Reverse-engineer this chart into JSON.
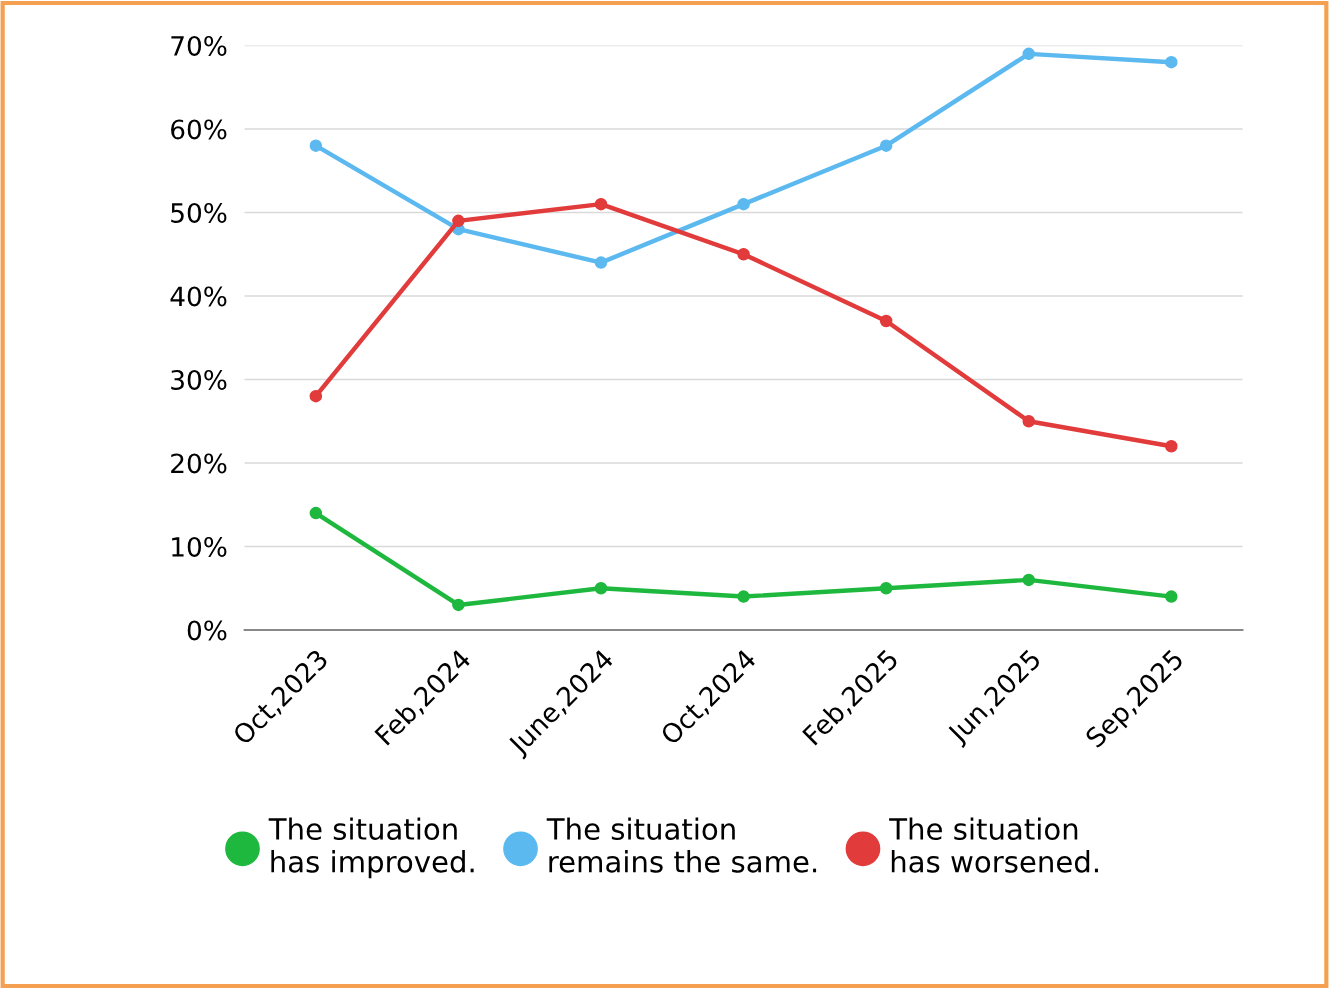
{
  "chart_data": {
    "type": "line",
    "categories": [
      "Oct,2023",
      "Feb,2024",
      "June,2024",
      "Oct,2024",
      "Feb,2025",
      "Jun,2025",
      "Sep,2025"
    ],
    "series": [
      {
        "name": "The situation\nhas improved.",
        "color": "#1fb83f",
        "values": [
          14,
          3,
          5,
          4,
          5,
          6,
          4
        ]
      },
      {
        "name": "The situation\nremains the same.",
        "color": "#5bb9f0",
        "values": [
          58,
          48,
          44,
          51,
          58,
          69,
          68
        ]
      },
      {
        "name": "The situation\nhas worsened.",
        "color": "#e23b3b",
        "values": [
          28,
          49,
          51,
          45,
          37,
          25,
          22
        ]
      }
    ],
    "ylim": [
      0,
      70
    ],
    "yticks": [
      {
        "value": 0,
        "label": "0%"
      },
      {
        "value": 10,
        "label": "10%"
      },
      {
        "value": 20,
        "label": "20%"
      },
      {
        "value": 30,
        "label": "30%"
      },
      {
        "value": 40,
        "label": "40%"
      },
      {
        "value": 50,
        "label": "50%"
      },
      {
        "value": 60,
        "label": "60%"
      },
      {
        "value": 70,
        "label": "70%"
      }
    ],
    "grid": "y",
    "legend": "bottom",
    "marker": "circle",
    "line_style": "solid"
  }
}
